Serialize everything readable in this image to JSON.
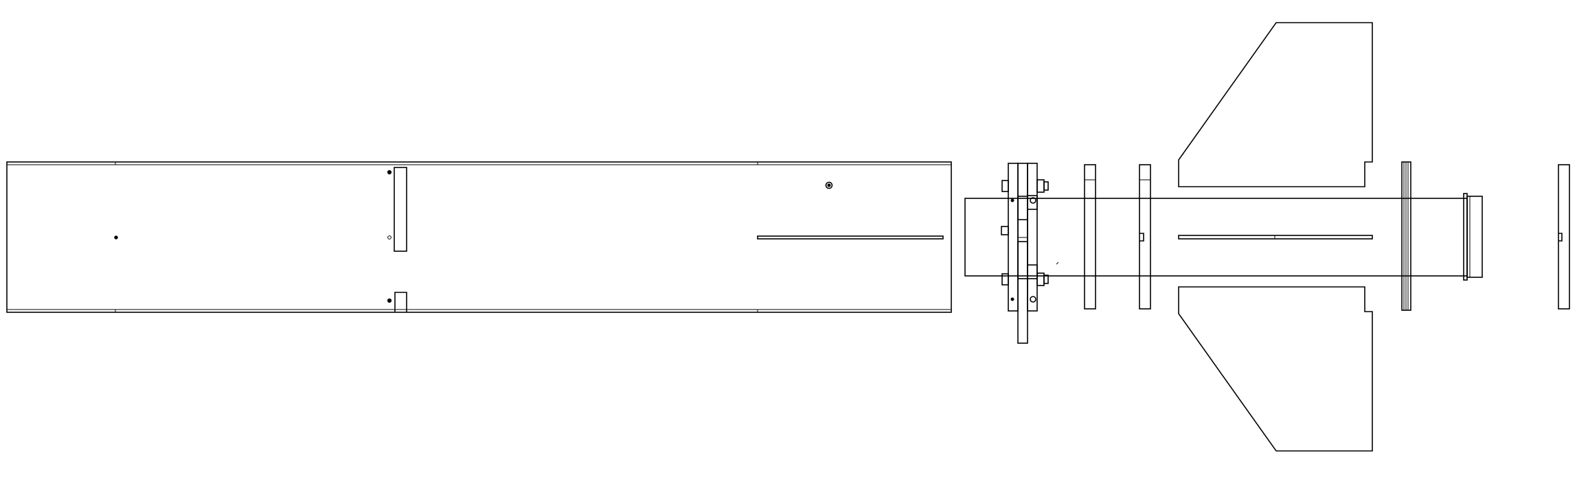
{
  "drawing": {
    "line_color": "#000000",
    "background_color": "#ffffff"
  }
}
